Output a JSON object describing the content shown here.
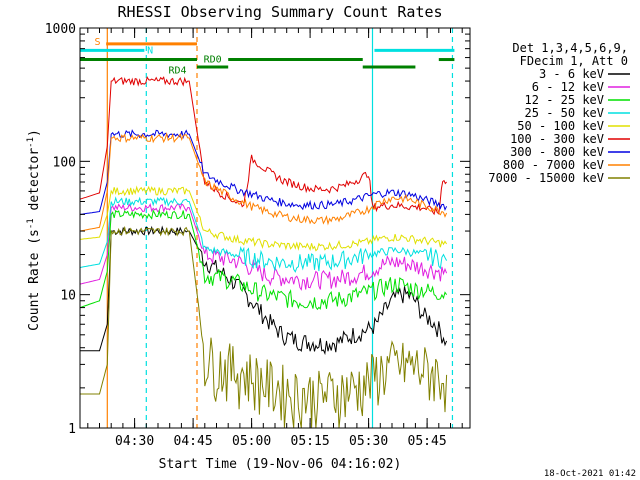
{
  "chart_data": {
    "type": "line",
    "title": "RHESSI Observing Summary Count Rates",
    "xlabel": "Start Time (19-Nov-06 04:16:02)",
    "ylabel": "Count Rate (s",
    "ylabel_sup": "-1",
    "ylabel_tail": " detector",
    "ylabel_end": ")",
    "yscale": "log",
    "ylim": [
      1,
      1000
    ],
    "y_ticks": [
      1,
      10,
      100,
      1000
    ],
    "x_unit": "minutes since 04:16:02",
    "xlim": [
      0,
      100
    ],
    "x_ticks": [
      {
        "value": 14,
        "label": "04:30"
      },
      {
        "value": 29,
        "label": "04:45"
      },
      {
        "value": 44,
        "label": "05:00"
      },
      {
        "value": 59,
        "label": "05:15"
      },
      {
        "value": 74,
        "label": "05:30"
      },
      {
        "value": 89,
        "label": "05:45"
      }
    ],
    "legend": {
      "position": "right",
      "header": [
        "Det 1,3,4,5,6,9,",
        "FDecim 1, Att 0"
      ]
    },
    "series": [
      {
        "name": "3 - 6 keV",
        "color": "#000000",
        "points": [
          [
            0,
            3.8
          ],
          [
            5,
            3.8
          ],
          [
            7,
            6
          ],
          [
            8,
            30
          ],
          [
            28,
            30
          ],
          [
            32,
            18
          ],
          [
            36,
            15
          ],
          [
            40,
            12
          ],
          [
            44,
            9
          ],
          [
            48,
            6.5
          ],
          [
            52,
            5
          ],
          [
            56,
            4.5
          ],
          [
            62,
            4.3
          ],
          [
            66,
            4.4
          ],
          [
            70,
            5
          ],
          [
            74,
            5.5
          ],
          [
            76,
            6
          ],
          [
            78,
            7.5
          ],
          [
            80,
            9
          ],
          [
            82,
            10
          ],
          [
            84,
            10
          ],
          [
            86,
            9
          ],
          [
            88,
            7
          ],
          [
            90,
            6.5
          ],
          [
            92,
            5.5
          ],
          [
            94,
            4.5
          ]
        ]
      },
      {
        "name": "6 - 12 keV",
        "color": "#e020e0",
        "points": [
          [
            0,
            12
          ],
          [
            5,
            13
          ],
          [
            7,
            20
          ],
          [
            8,
            45
          ],
          [
            28,
            45
          ],
          [
            32,
            20
          ],
          [
            36,
            19
          ],
          [
            40,
            18
          ],
          [
            44,
            16
          ],
          [
            48,
            14
          ],
          [
            52,
            13.5
          ],
          [
            56,
            13
          ],
          [
            62,
            13
          ],
          [
            66,
            13.2
          ],
          [
            70,
            14
          ],
          [
            74,
            15
          ],
          [
            76,
            16
          ],
          [
            78,
            17
          ],
          [
            80,
            17.5
          ],
          [
            82,
            17.5
          ],
          [
            84,
            17
          ],
          [
            86,
            16.5
          ],
          [
            88,
            16
          ],
          [
            90,
            15.5
          ],
          [
            92,
            15
          ],
          [
            94,
            14.5
          ]
        ]
      },
      {
        "name": "12 - 25 keV",
        "color": "#00e000",
        "points": [
          [
            0,
            8
          ],
          [
            5,
            9
          ],
          [
            7,
            15
          ],
          [
            8,
            40
          ],
          [
            28,
            40
          ],
          [
            32,
            14
          ],
          [
            36,
            13.5
          ],
          [
            40,
            12.5
          ],
          [
            44,
            11
          ],
          [
            48,
            10
          ],
          [
            52,
            9.5
          ],
          [
            56,
            9
          ],
          [
            62,
            9
          ],
          [
            66,
            9.2
          ],
          [
            70,
            9.8
          ],
          [
            74,
            10.5
          ],
          [
            76,
            11
          ],
          [
            78,
            11.5
          ],
          [
            80,
            12
          ],
          [
            82,
            12
          ],
          [
            84,
            11.5
          ],
          [
            86,
            11
          ],
          [
            88,
            11
          ],
          [
            90,
            10.5
          ],
          [
            92,
            10.5
          ],
          [
            94,
            10
          ]
        ]
      },
      {
        "name": "25 - 50 keV",
        "color": "#00e0e0",
        "points": [
          [
            0,
            16
          ],
          [
            5,
            17
          ],
          [
            7,
            25
          ],
          [
            8,
            50
          ],
          [
            28,
            50
          ],
          [
            32,
            22
          ],
          [
            36,
            21
          ],
          [
            40,
            20
          ],
          [
            44,
            19
          ],
          [
            48,
            18
          ],
          [
            52,
            17.5
          ],
          [
            56,
            17.5
          ],
          [
            62,
            17.5
          ],
          [
            66,
            18
          ],
          [
            70,
            19
          ],
          [
            74,
            20
          ],
          [
            76,
            20.5
          ],
          [
            78,
            21
          ],
          [
            80,
            21.5
          ],
          [
            82,
            21.5
          ],
          [
            84,
            21
          ],
          [
            86,
            20.5
          ],
          [
            88,
            20
          ],
          [
            90,
            19.5
          ],
          [
            92,
            19
          ],
          [
            94,
            18
          ]
        ]
      },
      {
        "name": "50 - 100 keV",
        "color": "#e0e000",
        "points": [
          [
            0,
            26
          ],
          [
            5,
            27
          ],
          [
            7,
            40
          ],
          [
            8,
            60
          ],
          [
            28,
            60
          ],
          [
            32,
            30
          ],
          [
            36,
            28
          ],
          [
            40,
            26
          ],
          [
            44,
            25
          ],
          [
            48,
            24
          ],
          [
            52,
            23.5
          ],
          [
            56,
            23
          ],
          [
            62,
            23
          ],
          [
            66,
            23.5
          ],
          [
            70,
            24
          ],
          [
            74,
            25
          ],
          [
            76,
            26
          ],
          [
            78,
            26.5
          ],
          [
            80,
            27
          ],
          [
            82,
            27
          ],
          [
            84,
            26.5
          ],
          [
            86,
            26
          ],
          [
            88,
            25.5
          ],
          [
            90,
            25
          ],
          [
            92,
            24.5
          ],
          [
            94,
            24
          ]
        ]
      },
      {
        "name": "100 - 300 keV",
        "color": "#e00000",
        "points": [
          [
            0,
            52
          ],
          [
            5,
            58
          ],
          [
            7,
            130
          ],
          [
            8,
            400
          ],
          [
            28,
            400
          ],
          [
            32,
            70
          ],
          [
            36,
            58
          ],
          [
            40,
            50
          ],
          [
            42,
            48
          ],
          [
            44,
            105
          ],
          [
            46,
            95
          ],
          [
            48,
            85
          ],
          [
            52,
            72
          ],
          [
            56,
            66
          ],
          [
            60,
            62
          ],
          [
            64,
            62
          ],
          [
            68,
            66
          ],
          [
            72,
            75
          ],
          [
            74,
            82
          ],
          [
            75,
            45
          ],
          [
            76,
            46
          ],
          [
            80,
            47
          ],
          [
            84,
            46
          ],
          [
            88,
            45
          ],
          [
            90,
            43
          ],
          [
            92,
            41
          ],
          [
            93,
            75
          ],
          [
            94,
            70
          ]
        ]
      },
      {
        "name": "300 - 800 keV",
        "color": "#0000e0",
        "points": [
          [
            0,
            40
          ],
          [
            5,
            42
          ],
          [
            7,
            70
          ],
          [
            8,
            160
          ],
          [
            28,
            160
          ],
          [
            32,
            80
          ],
          [
            36,
            70
          ],
          [
            40,
            62
          ],
          [
            44,
            57
          ],
          [
            48,
            52
          ],
          [
            52,
            49
          ],
          [
            56,
            47
          ],
          [
            62,
            47
          ],
          [
            66,
            48
          ],
          [
            70,
            51
          ],
          [
            74,
            55
          ],
          [
            76,
            57
          ],
          [
            78,
            58
          ],
          [
            80,
            58.5
          ],
          [
            82,
            58
          ],
          [
            84,
            57
          ],
          [
            86,
            55
          ],
          [
            88,
            52
          ],
          [
            90,
            50
          ],
          [
            92,
            48
          ],
          [
            94,
            46
          ]
        ]
      },
      {
        "name": "800 - 7000 keV",
        "color": "#ff8000",
        "points": [
          [
            0,
            30
          ],
          [
            5,
            32
          ],
          [
            7,
            60
          ],
          [
            8,
            150
          ],
          [
            28,
            150
          ],
          [
            32,
            70
          ],
          [
            36,
            60
          ],
          [
            40,
            52
          ],
          [
            44,
            46
          ],
          [
            48,
            42
          ],
          [
            52,
            39
          ],
          [
            56,
            37
          ],
          [
            62,
            36
          ],
          [
            66,
            37
          ],
          [
            70,
            40
          ],
          [
            74,
            44
          ],
          [
            76,
            48
          ],
          [
            78,
            51
          ],
          [
            80,
            53
          ],
          [
            82,
            53
          ],
          [
            84,
            52
          ],
          [
            86,
            50
          ],
          [
            88,
            47
          ],
          [
            90,
            45
          ],
          [
            92,
            43
          ],
          [
            94,
            41
          ]
        ]
      },
      {
        "name": "7000 - 15000 keV",
        "color": "#808000",
        "points": [
          [
            0,
            1.8
          ],
          [
            5,
            1.8
          ],
          [
            7,
            3
          ],
          [
            8,
            30
          ],
          [
            28,
            30
          ],
          [
            32,
            3.5
          ],
          [
            36,
            3
          ],
          [
            40,
            2.8
          ],
          [
            44,
            2.5
          ],
          [
            48,
            2.2
          ],
          [
            52,
            2
          ],
          [
            56,
            1.8
          ],
          [
            62,
            1.8
          ],
          [
            66,
            1.9
          ],
          [
            70,
            2
          ],
          [
            74,
            2.3
          ],
          [
            76,
            2.6
          ],
          [
            78,
            2.8
          ],
          [
            80,
            3
          ],
          [
            82,
            3
          ],
          [
            84,
            3
          ],
          [
            86,
            2.9
          ],
          [
            88,
            2.8
          ],
          [
            90,
            2.7
          ],
          [
            92,
            2.6
          ],
          [
            94,
            2.5
          ]
        ]
      }
    ],
    "annotations": {
      "bars": [
        {
          "label": "S",
          "color": "#ff8000",
          "y": 760,
          "x0": 6.7,
          "x1": 30
        },
        {
          "label": "N",
          "color": "#00e0e0",
          "y": 680,
          "x0": 0,
          "x1": 16.5
        },
        {
          "label": "N",
          "color": "#00e0e0",
          "y": 680,
          "x0": 75.5,
          "x1": 96
        },
        {
          "label": "RD0",
          "color": "#008000",
          "y": 580,
          "x0": 0,
          "x1": 30
        },
        {
          "label": "RD0",
          "color": "#008000",
          "y": 580,
          "x0": 38,
          "x1": 72.5
        },
        {
          "label": "RD0",
          "color": "#008000",
          "y": 580,
          "x0": 92,
          "x1": 96
        },
        {
          "label": "RD4",
          "color": "#008000",
          "y": 510,
          "x0": 30,
          "x1": 38
        },
        {
          "label": "RD4",
          "color": "#008000",
          "y": 510,
          "x0": 72.5,
          "x1": 86
        }
      ],
      "bar_labels": [
        {
          "text": "S",
          "color": "#ff8000",
          "x": 4.5,
          "y": 800
        },
        {
          "text": "N",
          "color": "#00e0e0",
          "x": 18,
          "y": 690
        },
        {
          "text": "RD0",
          "color": "#008000",
          "x": 34,
          "y": 590
        },
        {
          "text": "RD4",
          "color": "#008000",
          "x": 25,
          "y": 490
        }
      ],
      "vlines": [
        {
          "x": 7,
          "color": "#ff8000",
          "style": "solid"
        },
        {
          "x": 17,
          "color": "#00e0e0",
          "style": "dash"
        },
        {
          "x": 30,
          "color": "#ff8000",
          "style": "dash"
        },
        {
          "x": 75,
          "color": "#00e0e0",
          "style": "solid"
        },
        {
          "x": 95.5,
          "color": "#00e0e0",
          "style": "dash"
        }
      ]
    },
    "footer_date": "18-Oct-2021 01:42"
  }
}
